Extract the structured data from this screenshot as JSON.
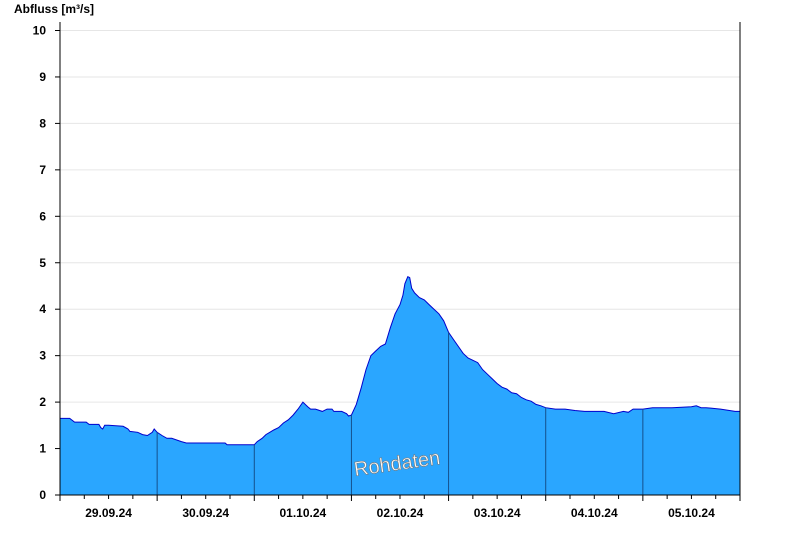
{
  "chart_data": {
    "type": "area",
    "ylabel": "Abfluss [m³/s]",
    "ylim": [
      0,
      10.2
    ],
    "y_ticks": [
      "0",
      "1",
      "2",
      "3",
      "4",
      "5",
      "6",
      "7",
      "8",
      "9",
      "10"
    ],
    "x_tick_labels": [
      "29.09.24",
      "30.09.24",
      "01.10.24",
      "02.10.24",
      "03.10.24",
      "04.10.24",
      "05.10.24"
    ],
    "day_range": [
      0,
      7
    ],
    "watermark": "Rohdaten",
    "grid": true,
    "fill_color": "#2aa6ff",
    "line_color": "#0000cc",
    "series": [
      {
        "x": [
          0,
          0.1,
          0.15,
          0.27,
          0.3,
          0.4,
          0.42,
          0.44,
          0.46,
          0.5,
          0.65,
          0.7,
          0.72,
          0.8,
          0.85,
          0.9,
          0.95,
          0.97,
          1.0,
          1.05,
          1.1,
          1.15,
          1.25,
          1.3,
          1.5,
          1.7,
          1.72,
          1.9,
          2.0,
          2.03,
          2.08,
          2.12,
          2.16,
          2.2,
          2.25,
          2.3,
          2.35,
          2.4,
          2.45,
          2.5,
          2.55,
          2.58,
          2.6,
          2.63,
          2.7,
          2.75,
          2.8,
          2.82,
          2.85,
          2.9,
          2.95,
          2.97,
          3.0,
          3.05,
          3.1,
          3.15,
          3.2,
          3.25,
          3.3,
          3.35,
          3.4,
          3.45,
          3.5,
          3.53,
          3.55,
          3.58,
          3.6,
          3.62,
          3.65,
          3.7,
          3.75,
          3.8,
          3.85,
          3.9,
          3.95,
          4.0,
          4.05,
          4.1,
          4.15,
          4.2,
          4.25,
          4.3,
          4.35,
          4.4,
          4.45,
          4.5,
          4.55,
          4.6,
          4.65,
          4.7,
          4.75,
          4.8,
          4.85,
          4.9,
          4.95,
          5.0,
          5.1,
          5.2,
          5.3,
          5.4,
          5.5,
          5.6,
          5.7,
          5.8,
          5.85,
          5.9,
          6.0,
          6.1,
          6.2,
          6.3,
          6.5,
          6.55,
          6.6,
          6.65,
          6.7,
          6.75,
          6.8,
          6.95,
          7.0
        ],
        "y": [
          1.65,
          1.65,
          1.57,
          1.57,
          1.52,
          1.52,
          1.45,
          1.42,
          1.5,
          1.5,
          1.48,
          1.42,
          1.37,
          1.35,
          1.3,
          1.28,
          1.35,
          1.42,
          1.35,
          1.28,
          1.22,
          1.22,
          1.15,
          1.12,
          1.12,
          1.12,
          1.08,
          1.08,
          1.08,
          1.15,
          1.22,
          1.3,
          1.35,
          1.4,
          1.45,
          1.55,
          1.62,
          1.72,
          1.85,
          2.0,
          1.9,
          1.85,
          1.85,
          1.85,
          1.8,
          1.85,
          1.85,
          1.8,
          1.8,
          1.8,
          1.75,
          1.7,
          1.72,
          1.95,
          2.3,
          2.7,
          3.0,
          3.1,
          3.2,
          3.25,
          3.6,
          3.9,
          4.1,
          4.3,
          4.55,
          4.7,
          4.68,
          4.45,
          4.35,
          4.25,
          4.2,
          4.1,
          4.0,
          3.9,
          3.75,
          3.5,
          3.35,
          3.2,
          3.05,
          2.95,
          2.9,
          2.85,
          2.7,
          2.6,
          2.5,
          2.4,
          2.32,
          2.28,
          2.2,
          2.18,
          2.1,
          2.05,
          2.02,
          1.95,
          1.92,
          1.88,
          1.85,
          1.85,
          1.82,
          1.8,
          1.8,
          1.8,
          1.75,
          1.8,
          1.78,
          1.85,
          1.85,
          1.88,
          1.88,
          1.88,
          1.9,
          1.92,
          1.88,
          1.88,
          1.87,
          1.86,
          1.85,
          1.8,
          1.8
        ]
      }
    ]
  }
}
